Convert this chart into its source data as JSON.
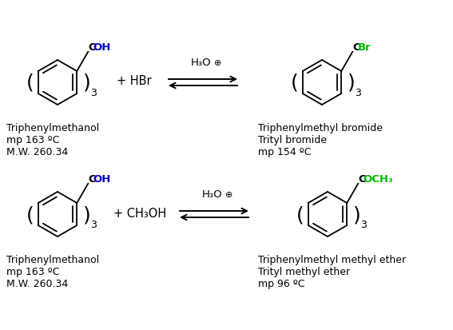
{
  "background_color": "#ffffff",
  "fig_width": 5.67,
  "fig_height": 4.14,
  "dpi": 100,
  "reaction1": {
    "reactant_label_c": "C",
    "reactant_label_rest": "OH",
    "reactant_label_color": "#0000cc",
    "subscript": "3",
    "reagent": "+ HBr",
    "catalyst": "H₃O",
    "product_label_c": "C",
    "product_label_rest": "Br",
    "product_label_color": "#00bb00",
    "product_subscript": "3",
    "name1": "Triphenylmethanol",
    "prop1": "mp 163 ºC",
    "prop2": "M.W. 260.34",
    "name2": "Triphenylmethyl bromide",
    "name2b": "Trityl bromide",
    "prop3": "mp 154 ºC"
  },
  "reaction2": {
    "reactant_label_c": "C",
    "reactant_label_rest": "OH",
    "reactant_label_color": "#0000cc",
    "subscript": "3",
    "reagent": "+ CH₃OH",
    "catalyst": "H₃O",
    "product_label_c": "C",
    "product_label_rest": "OCH₃",
    "product_label_color": "#00bb00",
    "product_subscript": "3",
    "name1": "Triphenylmethanol",
    "prop1": "mp 163 ºC",
    "prop2": "M.W. 260.34",
    "name2": "Triphenylmethyl methyl ether",
    "name2b": "Trityl methyl ether",
    "prop3": "mp 96 ºC"
  }
}
